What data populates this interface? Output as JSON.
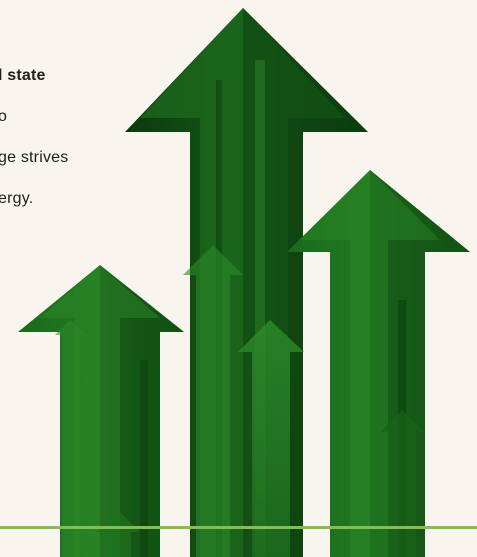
{
  "text": {
    "line1": "l state",
    "line2": "o",
    "line3": "ge strives",
    "line4": "ergy."
  },
  "colors": {
    "background": "#f8f5ee",
    "arrow_dark": "#0a2a0c",
    "arrow_mid": "#155f15",
    "arrow_light": "#2e8c2a",
    "rule": "#89bb55"
  },
  "artwork": {
    "icon": "green-up-arrows-illustration"
  }
}
